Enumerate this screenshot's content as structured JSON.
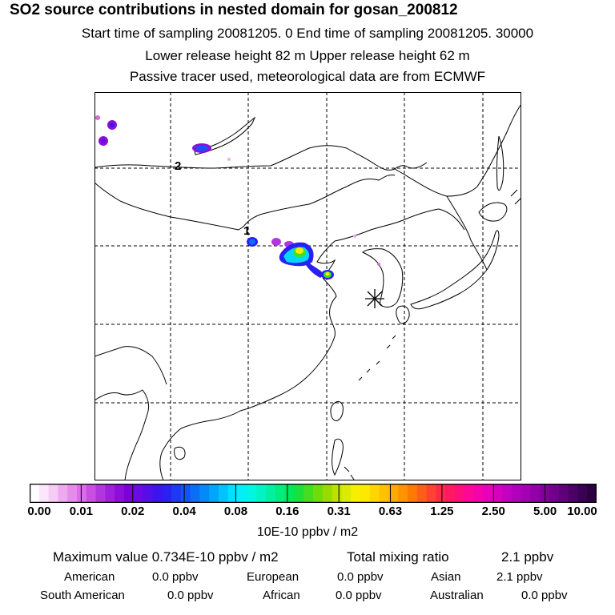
{
  "header": {
    "title": "SO2 source contributions in nested domain for gosan_200812",
    "line1": "Start time of sampling 20081205.     0     End time of sampling 20081205. 30000",
    "line2": "Lower release height   82 m          Upper release height   62 m",
    "line3": "Passive tracer used, meteorological data are from ECMWF"
  },
  "map": {
    "labels": {
      "track_1": "1",
      "track_2": "2"
    },
    "receptor_marker": "asterisk-icon",
    "colors": {
      "frame": "#000000",
      "grid": "#000000"
    }
  },
  "colorbar": {
    "ticks": [
      "0.00",
      "0.01",
      "0.02",
      "0.04",
      "0.08",
      "0.16",
      "0.31",
      "0.63",
      "1.25",
      "2.50",
      "5.00",
      "10.00"
    ],
    "units": "10E-10 ppbv / m2",
    "colors": [
      "#ffffff",
      "#fbe6fb",
      "#f5ccf5",
      "#eeaaf1",
      "#e58ceb",
      "#d96ee6",
      "#c84fe0",
      "#b136dd",
      "#9e1fdc",
      "#8d0ddb",
      "#7a00dc",
      "#6a0ae4",
      "#560ee8",
      "#3e14ec",
      "#2a20ef",
      "#1d39f2",
      "#1453f5",
      "#0c6ef7",
      "#0589f9",
      "#00a6fb",
      "#00c3fd",
      "#00e0fe",
      "#00f0f5",
      "#00f6e0",
      "#00f4c3",
      "#00f0a2",
      "#00ec7e",
      "#00e85c",
      "#1ae13a",
      "#44dd1f",
      "#6edb0a",
      "#98db00",
      "#bce200",
      "#dcea00",
      "#f6f000",
      "#fde800",
      "#ffd600",
      "#ffc100",
      "#ffaa00",
      "#ff9300",
      "#ff7a00",
      "#ff5e1a",
      "#ff4232",
      "#ff2a4a",
      "#ff1a62",
      "#ff0f7c",
      "#fd0796",
      "#f503aa",
      "#e801b8",
      "#d800bf",
      "#c400c2",
      "#b300bd",
      "#a300b4",
      "#9200a8",
      "#81009a",
      "#70008a",
      "#5f0079",
      "#4c0066",
      "#3a0052",
      "#2a003e"
    ]
  },
  "stats": {
    "max_value": "Maximum value  0.734E-10 ppbv / m2",
    "total_label": "Total mixing ratio",
    "total_value": "2.1 ppbv",
    "regions": [
      {
        "name": "American",
        "value": "0.0 ppbv"
      },
      {
        "name": "European",
        "value": "0.0 ppbv"
      },
      {
        "name": "Asian",
        "value": "2.1 ppbv"
      },
      {
        "name": "South American",
        "value": "0.0 ppbv"
      },
      {
        "name": "African",
        "value": "0.0 ppbv"
      },
      {
        "name": "Australian",
        "value": "0.0 ppbv"
      }
    ]
  }
}
